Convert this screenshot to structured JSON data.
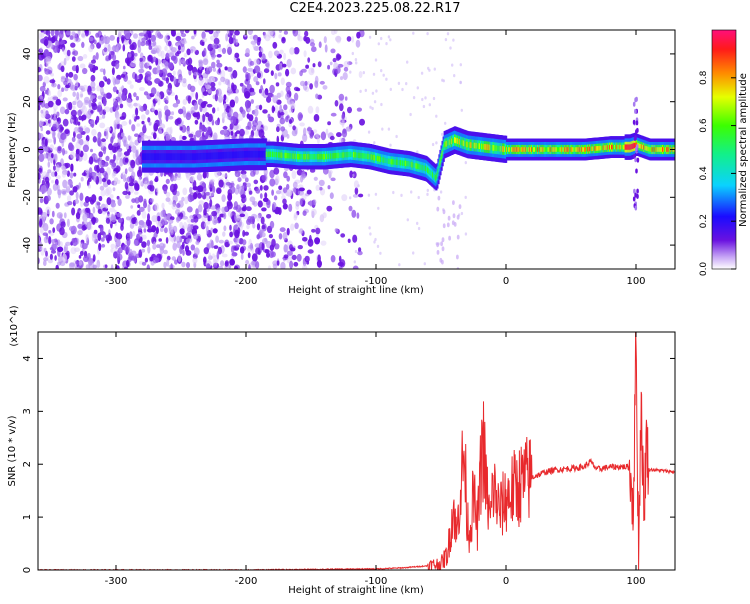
{
  "title": "C2E4.2023.225.08.22.R17",
  "chart_data": [
    {
      "type": "heatmap",
      "xlabel": "Height of straight line (km)",
      "ylabel": "Frequency (Hz)",
      "xlim": [
        -360,
        130
      ],
      "ylim": [
        -50,
        50
      ],
      "x_ticks": [
        -300,
        -200,
        -100,
        0,
        100
      ],
      "y_ticks": [
        -40,
        -20,
        0,
        20,
        40
      ],
      "colorbar": {
        "label": "Normalized spectral amplitude",
        "range": [
          0,
          1
        ],
        "ticks": [
          "0.0",
          "0.2",
          "0.4",
          "0.6",
          "0.8"
        ],
        "tick_values": [
          0,
          0.2,
          0.4,
          0.6,
          0.8
        ],
        "colormap": "rainbow (purple-blue-cyan-green-yellow-orange-red-magenta)"
      },
      "ridge_center_hz": [
        [
          -275,
          -3
        ],
        [
          -240,
          -3
        ],
        [
          -200,
          -2
        ],
        [
          -180,
          -2
        ],
        [
          -160,
          -3
        ],
        [
          -140,
          -3
        ],
        [
          -120,
          -2
        ],
        [
          -105,
          -3
        ],
        [
          -90,
          -5
        ],
        [
          -75,
          -6
        ],
        [
          -62,
          -8
        ],
        [
          -54,
          -12
        ],
        [
          -48,
          2
        ],
        [
          -40,
          4
        ],
        [
          -30,
          2
        ],
        [
          -15,
          1
        ],
        [
          0,
          0
        ],
        [
          20,
          0
        ],
        [
          40,
          0
        ],
        [
          60,
          0
        ],
        [
          80,
          1
        ],
        [
          95,
          1
        ],
        [
          100,
          2
        ],
        [
          110,
          0
        ],
        [
          130,
          0
        ]
      ],
      "noise_region_km": [
        -360,
        -120
      ]
    },
    {
      "type": "line",
      "xlabel": "Height of straight line (km)",
      "ylabel": "SNR (10 * v/v)",
      "y_multiplier": "(x10^4)",
      "xlim": [
        -360,
        130
      ],
      "ylim": [
        0,
        4.5
      ],
      "x_ticks": [
        -300,
        -200,
        -100,
        0,
        100
      ],
      "y_ticks": [
        0,
        1,
        2,
        3,
        4
      ],
      "color": "#e8292c",
      "series": [
        {
          "x": [
            -360,
            -300,
            -250,
            -200,
            -150,
            -100,
            -80,
            -60,
            -50,
            -45,
            -42,
            -40,
            -38,
            -35,
            -32,
            -30,
            -28,
            -25,
            -22,
            -20,
            -18,
            -15,
            -12,
            -10,
            -5,
            0,
            5,
            10,
            15,
            20,
            30,
            40,
            50,
            60,
            65,
            70,
            80,
            90,
            95,
            98,
            100,
            102,
            104,
            106,
            108,
            110,
            120,
            130
          ],
          "y": [
            0.0,
            0.0,
            0.0,
            0.0,
            0.01,
            0.02,
            0.04,
            0.08,
            0.12,
            0.3,
            0.9,
            1.2,
            0.6,
            1.6,
            2.2,
            1.0,
            0.7,
            1.4,
            0.8,
            1.6,
            2.5,
            1.5,
            0.9,
            1.6,
            1.1,
            1.35,
            1.5,
            1.6,
            1.7,
            1.75,
            1.85,
            1.9,
            1.92,
            1.95,
            2.05,
            1.9,
            1.95,
            1.95,
            1.95,
            1.2,
            4.45,
            0.3,
            3.3,
            1.0,
            2.5,
            1.9,
            1.88,
            1.85
          ]
        }
      ]
    }
  ]
}
